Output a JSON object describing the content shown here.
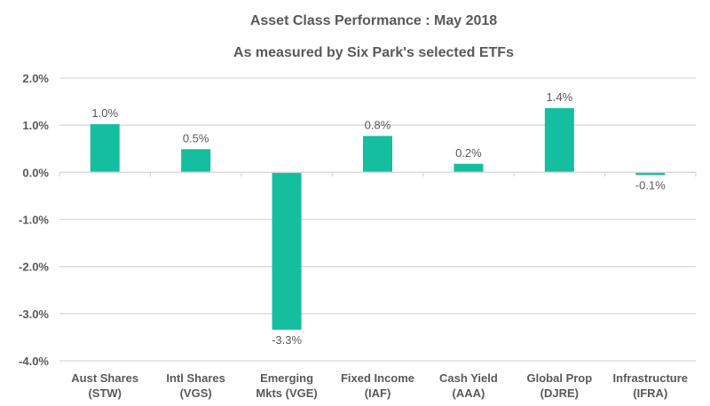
{
  "chart_data": {
    "type": "bar",
    "title": "Asset Class Performance : May 2018",
    "subtitle": "As measured by Six Park's selected ETFs",
    "xlabel": "",
    "ylabel": "",
    "categories": [
      [
        "Aust Shares",
        "(STW)"
      ],
      [
        "Intl Shares",
        "(VGS)"
      ],
      [
        "Emerging",
        "Mkts (VGE)"
      ],
      [
        "Fixed Income",
        "(IAF)"
      ],
      [
        "Cash Yield",
        "(AAA)"
      ],
      [
        "Global Prop",
        "(DJRE)"
      ],
      [
        "Infrastructure",
        "(IFRA)"
      ]
    ],
    "values": [
      1.02,
      0.49,
      -3.34,
      0.77,
      0.18,
      1.36,
      -0.06
    ],
    "data_labels": [
      "1.0%",
      "0.5%",
      "-3.3%",
      "0.8%",
      "0.2%",
      "1.4%",
      "-0.1%"
    ],
    "ylim": [
      -4.0,
      2.0
    ],
    "yticks": [
      2.0,
      1.0,
      0.0,
      -1.0,
      -2.0,
      -3.0,
      -4.0
    ],
    "ytick_labels": [
      "2.0%",
      "1.0%",
      "0.0%",
      "-1.0%",
      "-2.0%",
      "-3.0%",
      "-4.0%"
    ],
    "grid": true,
    "legend": "none",
    "colors": {
      "bar": "#14BE9E",
      "grid": "#D9D9D9",
      "text": "#595959"
    }
  }
}
